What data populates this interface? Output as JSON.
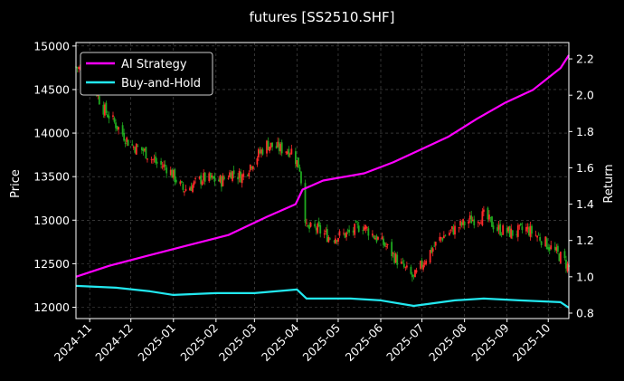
{
  "chart_data": {
    "type": "line",
    "title": "futures [SS2510.SHF]",
    "xlabel": "",
    "ylabel_left": "Price",
    "ylabel_right": "Return",
    "x_ticks": [
      "2024-11",
      "2024-12",
      "2025-01",
      "2025-02",
      "2025-03",
      "2025-04",
      "2025-05",
      "2025-06",
      "2025-07",
      "2025-08",
      "2025-09",
      "2025-10"
    ],
    "x_range": [
      "2024-10-22",
      "2025-10-16"
    ],
    "ylim_left": [
      11870,
      15040
    ],
    "yticks_left": [
      12000,
      12500,
      13000,
      13500,
      14000,
      14500,
      15000
    ],
    "ylim_right": [
      0.77,
      2.29
    ],
    "yticks_right": [
      0.8,
      1.0,
      1.2,
      1.4,
      1.6,
      1.8,
      2.0,
      2.2
    ],
    "grid": true,
    "legend_position": "upper-left",
    "colors": {
      "ai": "#ff00ff",
      "bh": "#22e8f0",
      "up": "#ff2a2a",
      "down": "#1faa1f",
      "grid": "#555555"
    },
    "price_anchors": [
      [
        "2024-10-22",
        14760
      ],
      [
        "2024-11-01",
        14680
      ],
      [
        "2024-11-10",
        14300
      ],
      [
        "2024-11-20",
        14100
      ],
      [
        "2024-12-01",
        13860
      ],
      [
        "2024-12-10",
        13800
      ],
      [
        "2024-12-20",
        13650
      ],
      [
        "2024-12-28",
        13600
      ],
      [
        "2025-01-08",
        13350
      ],
      [
        "2025-01-15",
        13400
      ],
      [
        "2025-01-22",
        13480
      ],
      [
        "2025-02-05",
        13450
      ],
      [
        "2025-02-12",
        13550
      ],
      [
        "2025-02-20",
        13500
      ],
      [
        "2025-03-01",
        13700
      ],
      [
        "2025-03-10",
        13870
      ],
      [
        "2025-03-20",
        13820
      ],
      [
        "2025-03-28",
        13800
      ],
      [
        "2025-04-03",
        13600
      ],
      [
        "2025-04-08",
        12900
      ],
      [
        "2025-04-15",
        12900
      ],
      [
        "2025-04-25",
        12800
      ],
      [
        "2025-05-10",
        12850
      ],
      [
        "2025-05-18",
        12950
      ],
      [
        "2025-05-25",
        12850
      ],
      [
        "2025-06-05",
        12700
      ],
      [
        "2025-06-15",
        12500
      ],
      [
        "2025-06-25",
        12330
      ],
      [
        "2025-07-05",
        12600
      ],
      [
        "2025-07-15",
        12800
      ],
      [
        "2025-07-25",
        12900
      ],
      [
        "2025-08-05",
        13000
      ],
      [
        "2025-08-15",
        13050
      ],
      [
        "2025-08-25",
        12900
      ],
      [
        "2025-09-05",
        12850
      ],
      [
        "2025-09-15",
        12900
      ],
      [
        "2025-09-25",
        12800
      ],
      [
        "2025-10-05",
        12650
      ],
      [
        "2025-10-12",
        12550
      ],
      [
        "2025-10-16",
        12450
      ]
    ],
    "series": [
      {
        "name": "AI Strategy",
        "points": [
          [
            "2024-10-22",
            1.0
          ],
          [
            "2024-11-15",
            1.06
          ],
          [
            "2024-12-10",
            1.11
          ],
          [
            "2025-01-10",
            1.17
          ],
          [
            "2025-02-10",
            1.23
          ],
          [
            "2025-03-10",
            1.33
          ],
          [
            "2025-03-31",
            1.4
          ],
          [
            "2025-04-05",
            1.48
          ],
          [
            "2025-04-20",
            1.53
          ],
          [
            "2025-05-20",
            1.57
          ],
          [
            "2025-06-10",
            1.63
          ],
          [
            "2025-06-30",
            1.7
          ],
          [
            "2025-07-20",
            1.77
          ],
          [
            "2025-08-10",
            1.87
          ],
          [
            "2025-08-31",
            1.96
          ],
          [
            "2025-09-20",
            2.03
          ],
          [
            "2025-10-10",
            2.15
          ],
          [
            "2025-10-16",
            2.22
          ]
        ]
      },
      {
        "name": "Buy-and-Hold",
        "points": [
          [
            "2024-10-22",
            0.95
          ],
          [
            "2024-11-20",
            0.94
          ],
          [
            "2024-12-15",
            0.92
          ],
          [
            "2025-01-01",
            0.9
          ],
          [
            "2025-02-01",
            0.91
          ],
          [
            "2025-03-01",
            0.91
          ],
          [
            "2025-04-01",
            0.93
          ],
          [
            "2025-04-08",
            0.88
          ],
          [
            "2025-05-10",
            0.88
          ],
          [
            "2025-06-01",
            0.87
          ],
          [
            "2025-06-25",
            0.84
          ],
          [
            "2025-07-25",
            0.87
          ],
          [
            "2025-08-15",
            0.88
          ],
          [
            "2025-09-10",
            0.87
          ],
          [
            "2025-10-10",
            0.86
          ],
          [
            "2025-10-16",
            0.83
          ]
        ]
      }
    ]
  }
}
